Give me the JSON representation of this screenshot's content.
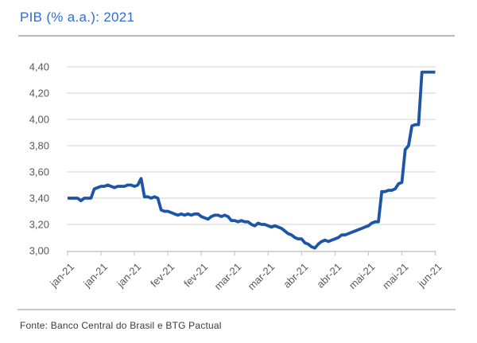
{
  "header": {
    "title": "PIB (% a.a.): 2021"
  },
  "footer": {
    "source": "Fonte: Banco Central do Brasil e BTG Pactual"
  },
  "colors": {
    "accent_blue": "#2D6DD3",
    "line_blue": "#1D55A8",
    "gridline": "#DCDCDC",
    "axis": "#C6C6C6",
    "tick_label": "#585858",
    "title_separator": "#B9B9B9",
    "footer_separator": "#C9C9C9"
  },
  "chart_data": {
    "type": "line",
    "title": "PIB (% a.a.): 2021",
    "xlabel": "",
    "ylabel": "",
    "grid": "horizontal",
    "legend": "none",
    "x_tick_labels": [
      "jan-21",
      "jan-21",
      "jan-21",
      "fev-21",
      "fev-21",
      "mar-21",
      "mar-21",
      "abr-21",
      "abr-21",
      "mai-21",
      "mai-21",
      "jun-21"
    ],
    "y_axis": {
      "min": 3.0,
      "max": 4.4,
      "step": 0.2,
      "decimal_separator": ",",
      "tick_labels": [
        "3,00",
        "3,20",
        "3,40",
        "3,60",
        "3,80",
        "4,00",
        "4,20",
        "4,40"
      ]
    },
    "series": [
      {
        "values": [
          3.4,
          3.4,
          3.4,
          3.4,
          3.38,
          3.4,
          3.4,
          3.4,
          3.47,
          3.48,
          3.49,
          3.49,
          3.5,
          3.49,
          3.48,
          3.49,
          3.49,
          3.49,
          3.5,
          3.5,
          3.49,
          3.5,
          3.55,
          3.41,
          3.41,
          3.4,
          3.41,
          3.4,
          3.31,
          3.3,
          3.3,
          3.29,
          3.28,
          3.27,
          3.28,
          3.27,
          3.28,
          3.27,
          3.28,
          3.28,
          3.26,
          3.25,
          3.24,
          3.26,
          3.27,
          3.27,
          3.26,
          3.27,
          3.26,
          3.23,
          3.23,
          3.22,
          3.23,
          3.22,
          3.22,
          3.2,
          3.19,
          3.21,
          3.2,
          3.2,
          3.19,
          3.18,
          3.19,
          3.18,
          3.17,
          3.15,
          3.13,
          3.12,
          3.1,
          3.09,
          3.09,
          3.06,
          3.05,
          3.03,
          3.02,
          3.05,
          3.07,
          3.08,
          3.07,
          3.08,
          3.09,
          3.1,
          3.12,
          3.12,
          3.13,
          3.14,
          3.15,
          3.16,
          3.17,
          3.18,
          3.19,
          3.21,
          3.22,
          3.22,
          3.45,
          3.45,
          3.46,
          3.46,
          3.47,
          3.51,
          3.52,
          3.77,
          3.8,
          3.95,
          3.96,
          3.96,
          4.36,
          4.36,
          4.36,
          4.36,
          4.36
        ]
      }
    ],
    "ylim": [
      3.0,
      4.4
    ]
  }
}
